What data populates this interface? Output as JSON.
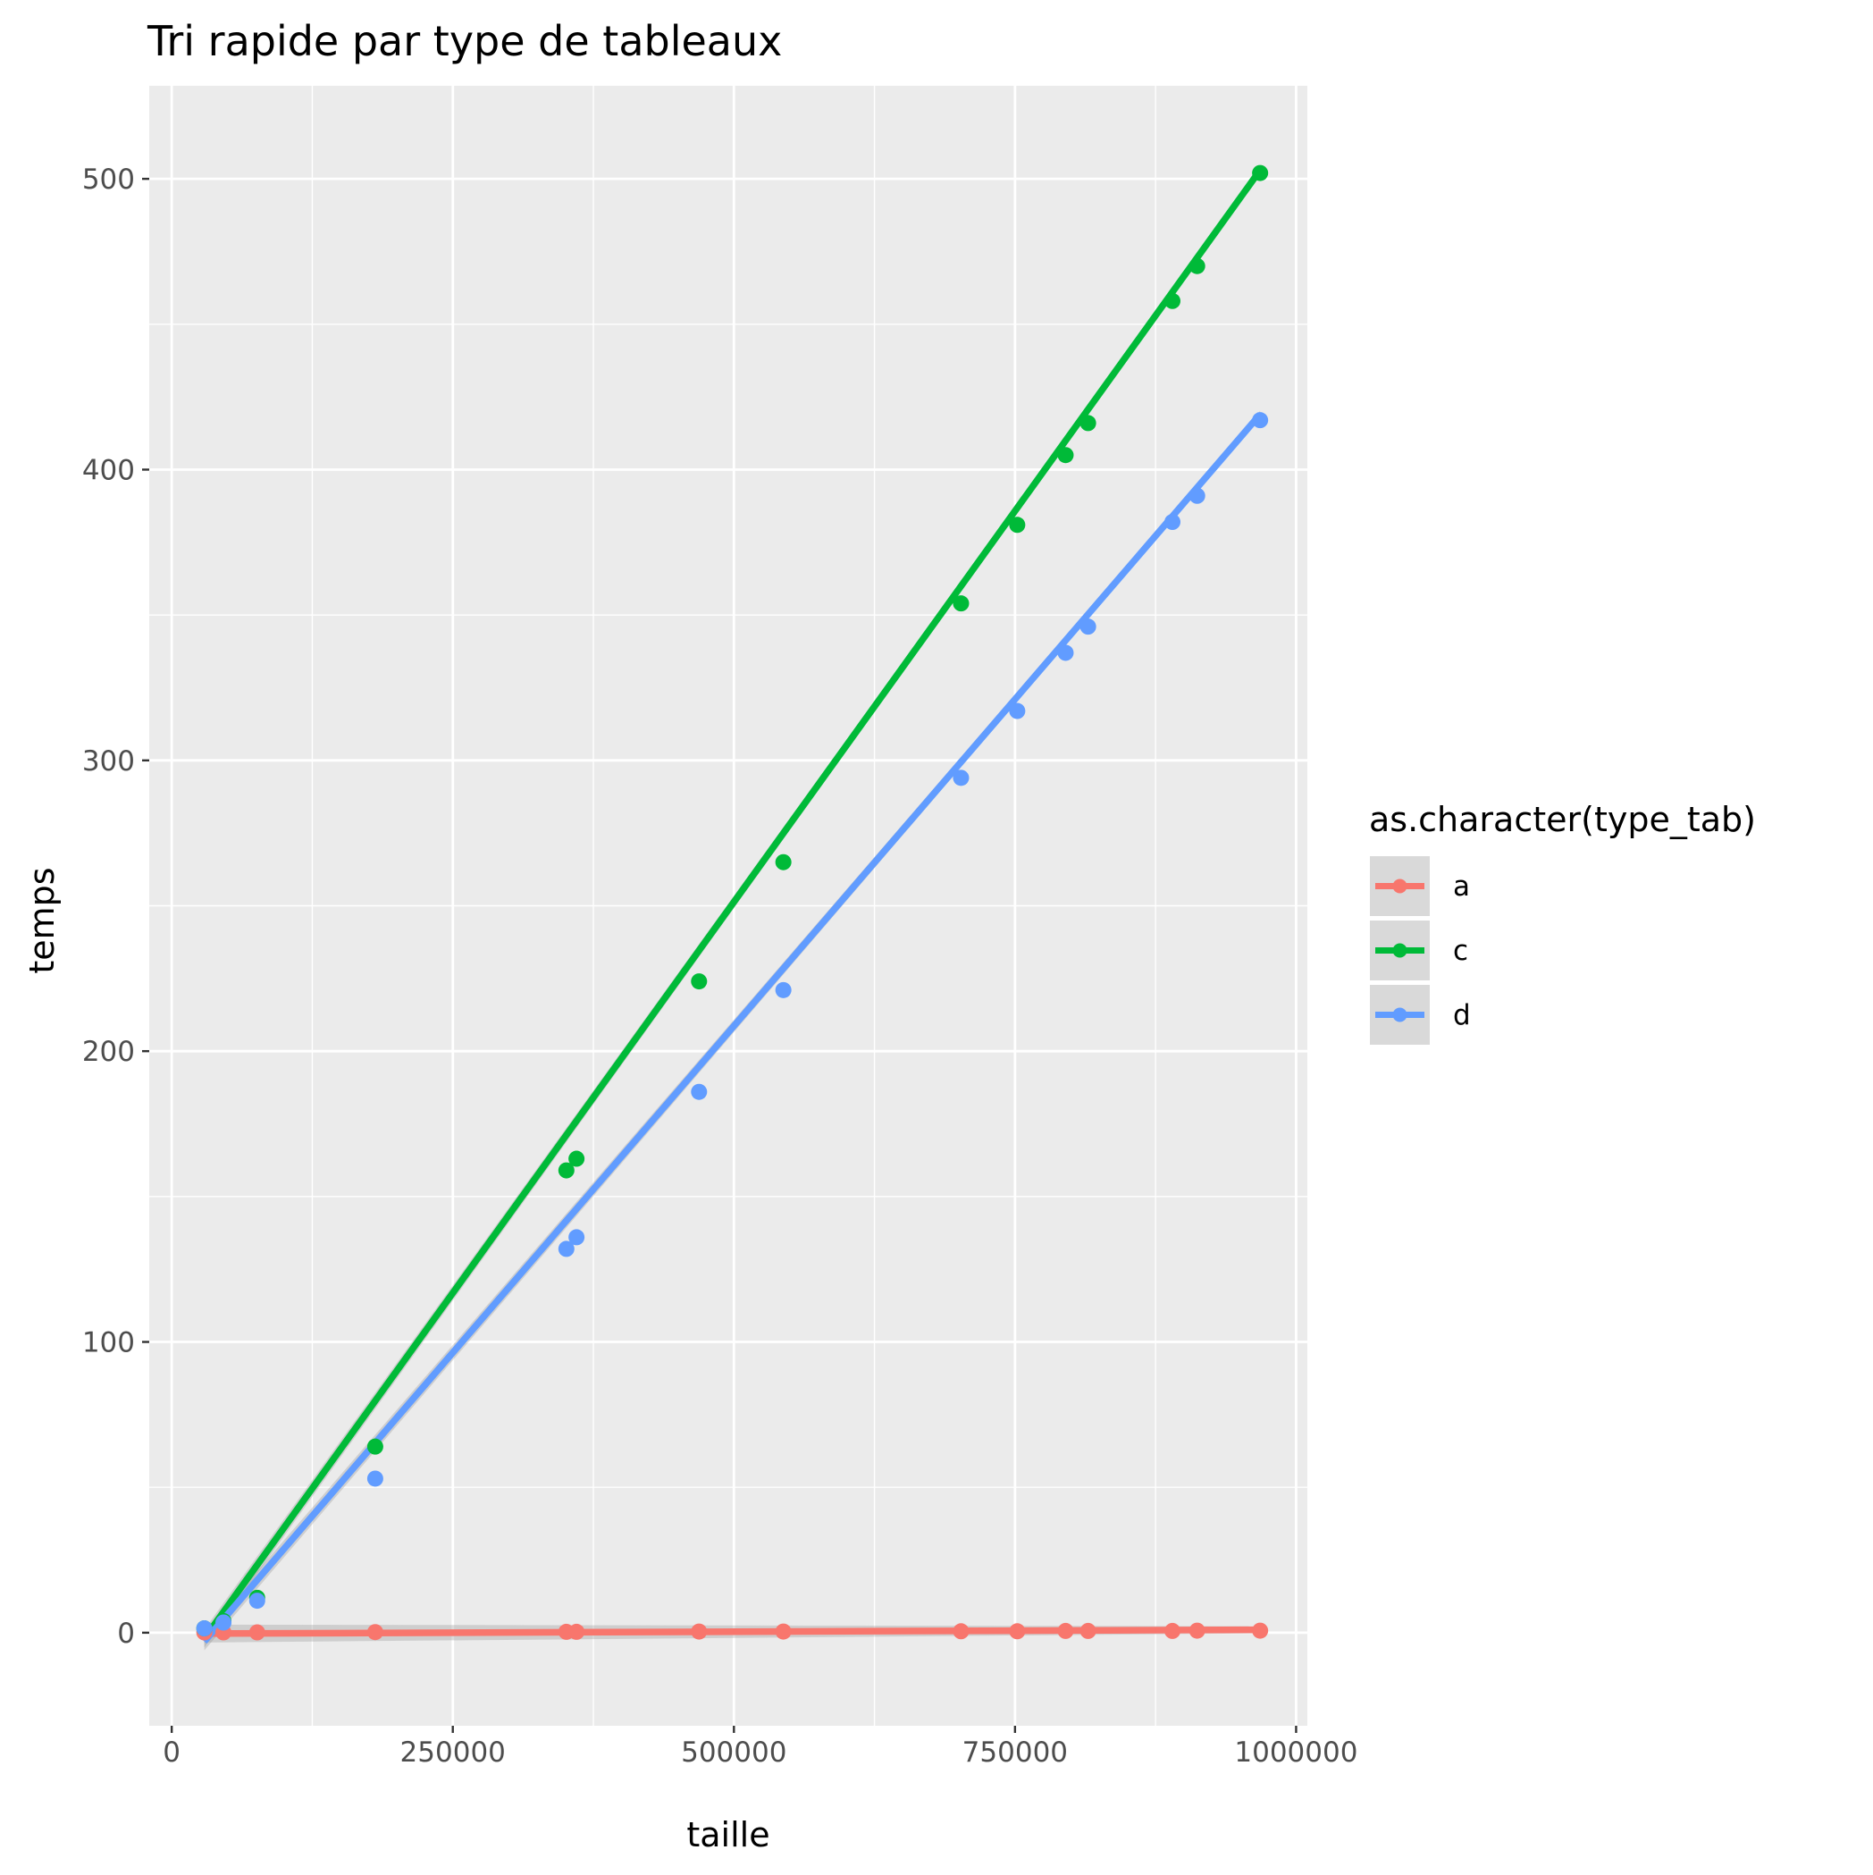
{
  "chart_data": {
    "type": "line",
    "title": "Tri rapide par type de tableaux",
    "xlabel": "taille",
    "ylabel": "temps",
    "xlim": [
      -20000,
      1010000
    ],
    "ylim": [
      -32,
      532
    ],
    "x_ticks": [
      0,
      250000,
      500000,
      750000,
      1000000
    ],
    "x_tick_labels": [
      "0",
      "250000",
      "500000",
      "750000",
      "1000000"
    ],
    "y_ticks": [
      0,
      100,
      200,
      300,
      400,
      500
    ],
    "y_tick_labels": [
      "0",
      "100",
      "200",
      "300",
      "400",
      "500"
    ],
    "grid": true,
    "legend": {
      "title": "as.character(type_tab)",
      "position": "right"
    },
    "series": [
      {
        "name": "a",
        "color": "#F8766D",
        "x": [
          29000,
          46000,
          76000,
          181000,
          351000,
          360000,
          469000,
          544000,
          702000,
          752000,
          795000,
          815000,
          890000,
          912000,
          968000
        ],
        "y": [
          0.1,
          0.1,
          0.1,
          0.2,
          0.3,
          0.3,
          0.4,
          0.4,
          0.5,
          0.5,
          0.6,
          0.6,
          0.6,
          0.7,
          0.7
        ],
        "fit": [
          [
            29000,
            -0.3
          ],
          [
            968000,
            1.0
          ]
        ]
      },
      {
        "name": "c",
        "color": "#00BA38",
        "x": [
          29000,
          46000,
          76000,
          181000,
          351000,
          360000,
          469000,
          544000,
          702000,
          752000,
          795000,
          815000,
          890000,
          912000,
          968000
        ],
        "y": [
          1.5,
          4,
          12,
          64,
          159,
          163,
          224,
          265,
          354,
          381,
          405,
          416,
          458,
          470,
          502
        ],
        "fit": [
          [
            29000,
            -2
          ],
          [
            968000,
            503
          ]
        ]
      },
      {
        "name": "d",
        "color": "#619CFF",
        "x": [
          29000,
          46000,
          76000,
          181000,
          351000,
          360000,
          469000,
          544000,
          702000,
          752000,
          795000,
          815000,
          890000,
          912000,
          968000
        ],
        "y": [
          1.5,
          3.5,
          11,
          53,
          132,
          136,
          186,
          221,
          294,
          317,
          337,
          346,
          382,
          391,
          417
        ],
        "fit": [
          [
            29000,
            -3
          ],
          [
            968000,
            419
          ]
        ]
      }
    ]
  }
}
